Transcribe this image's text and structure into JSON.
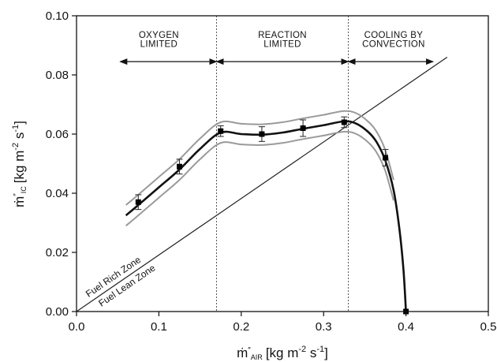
{
  "chart_data": {
    "type": "line",
    "xlabel": "ṁ″AIR [kg m⁻² s⁻¹]",
    "xlabel_parts": {
      "symbol": "ṁ",
      "prime": "″",
      "subscript": "AIR",
      "units": "[kg m",
      "exp1": "-2",
      "mid": " s",
      "exp2": "-1",
      "end": "]"
    },
    "ylabel": "ṁ″IC [kg m⁻² s⁻¹]",
    "ylabel_parts": {
      "symbol": "ṁ",
      "prime": "″",
      "subscript": "IC",
      "units": "[kg m",
      "exp1": "-2",
      "mid": " s",
      "exp2": "-1",
      "end": "]"
    },
    "xlim": [
      0.0,
      0.5
    ],
    "ylim": [
      0.0,
      0.1
    ],
    "xticks": [
      "0.0",
      "0.1",
      "0.2",
      "0.3",
      "0.4",
      "0.5"
    ],
    "yticks": [
      "0.00",
      "0.02",
      "0.04",
      "0.06",
      "0.08",
      "0.10"
    ],
    "series": [
      {
        "x": [
          0.075,
          0.125,
          0.175,
          0.225,
          0.275,
          0.325,
          0.375,
          0.4
        ],
        "values": [
          0.037,
          0.049,
          0.061,
          0.06,
          0.062,
          0.064,
          0.052,
          0.0
        ],
        "error": [
          0.0025,
          0.0025,
          0.0018,
          0.0025,
          0.0028,
          0.0018,
          0.0028,
          0.0
        ]
      }
    ],
    "fit_curve": {
      "x": [
        0.06,
        0.075,
        0.1,
        0.125,
        0.15,
        0.175,
        0.2,
        0.225,
        0.25,
        0.275,
        0.3,
        0.325,
        0.34,
        0.355,
        0.365,
        0.375,
        0.385,
        0.392,
        0.397,
        0.4
      ],
      "values": [
        0.0325,
        0.036,
        0.042,
        0.048,
        0.055,
        0.0605,
        0.06,
        0.0598,
        0.0605,
        0.0618,
        0.063,
        0.0643,
        0.0635,
        0.0605,
        0.057,
        0.051,
        0.041,
        0.028,
        0.014,
        0.0
      ],
      "band": 0.0035
    },
    "stoichiometric_line": {
      "x": [
        0.0,
        0.45
      ],
      "values": [
        0.0,
        0.086
      ]
    },
    "dividers_x": [
      0.17,
      0.33
    ],
    "regions": [
      {
        "lines": [
          "OXYGEN",
          "LIMITED"
        ],
        "arrow_x": [
          0.053,
          0.17
        ],
        "x_center": 0.1
      },
      {
        "lines": [
          "REACTION",
          "LIMITED"
        ],
        "arrow_x": [
          0.17,
          0.33
        ],
        "x_center": 0.25
      },
      {
        "lines": [
          "COOLING BY",
          "CONVECTION"
        ],
        "arrow_x": [
          0.33,
          0.433
        ],
        "x_center": 0.385
      }
    ],
    "arrow_y": 0.0845,
    "region_label_y": [
      0.0925,
      0.0895
    ],
    "zone_labels": {
      "upper": "Fuel Rich Zone",
      "lower": "Fuel Lean Zone"
    },
    "grid": false,
    "legend": "none"
  }
}
